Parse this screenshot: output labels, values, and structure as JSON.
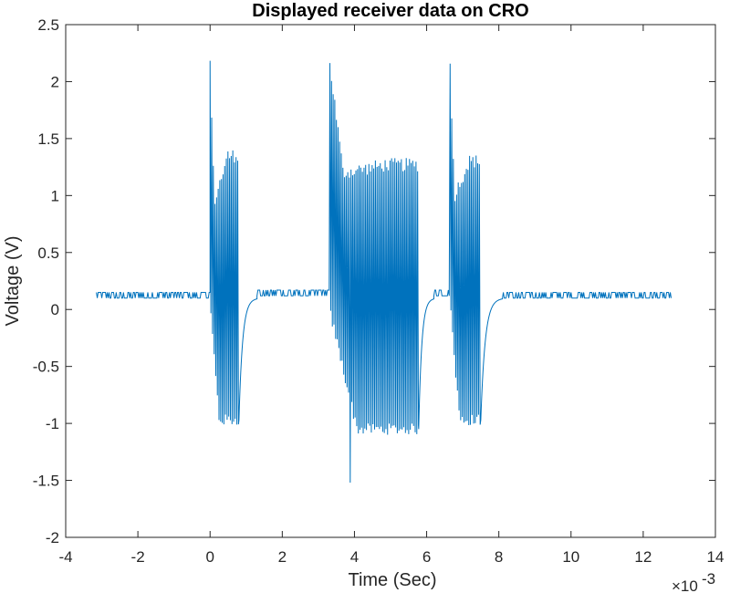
{
  "chart_data": {
    "type": "line",
    "title": "Displayed receiver data on CRO",
    "xlabel": "Time (Sec)",
    "ylabel": "Voltage (V)",
    "x_exponent_label": "×10",
    "x_exponent_power": "-3",
    "x_scale_factor": 0.001,
    "xlim": [
      -4,
      14
    ],
    "ylim": [
      -2,
      2.5
    ],
    "xticks": [
      -4,
      -2,
      0,
      2,
      4,
      6,
      8,
      10,
      12,
      14
    ],
    "xtick_labels": [
      "-4",
      "-2",
      "0",
      "2",
      "4",
      "6",
      "8",
      "10",
      "12",
      "14"
    ],
    "yticks": [
      -2,
      -1.5,
      -1,
      -0.5,
      0,
      0.5,
      1,
      1.5,
      2,
      2.5
    ],
    "ytick_labels": [
      "-2",
      "-1.5",
      "-1",
      "-0.5",
      "0",
      "0.5",
      "1",
      "1.5",
      "2",
      "2.5"
    ],
    "grid": false,
    "line_color": "#0072BD",
    "series": [
      {
        "baseline": {
          "x_start": -3.15,
          "x_end": 12.8,
          "low": 0.1,
          "high": 0.15
        },
        "bursts": [
          {
            "x_start": 0.0,
            "x_end": 0.8,
            "period": 0.045,
            "peak": 2.16,
            "peak_low": 0.95,
            "peak_tail": 1.35,
            "trough": -0.05,
            "trough_end": -0.97,
            "recovery_end": 1.3,
            "recovery_level": 0.1
          },
          {
            "x_start": 3.32,
            "x_end": 5.78,
            "period": 0.045,
            "peak": 2.16,
            "peak_low": 1.2,
            "peak_tail": 1.27,
            "trough": -0.05,
            "trough_end": -1.05,
            "spike_x": 3.88,
            "spike_y": -1.52,
            "recovery_end": 6.2,
            "recovery_level": 0.1
          },
          {
            "x_start": 6.65,
            "x_end": 7.5,
            "period": 0.045,
            "peak": 2.16,
            "peak_low": 1.0,
            "peak_tail": 1.3,
            "trough": -0.05,
            "trough_end": -0.97,
            "recovery_end": 8.1,
            "recovery_level": 0.1
          }
        ]
      }
    ]
  }
}
